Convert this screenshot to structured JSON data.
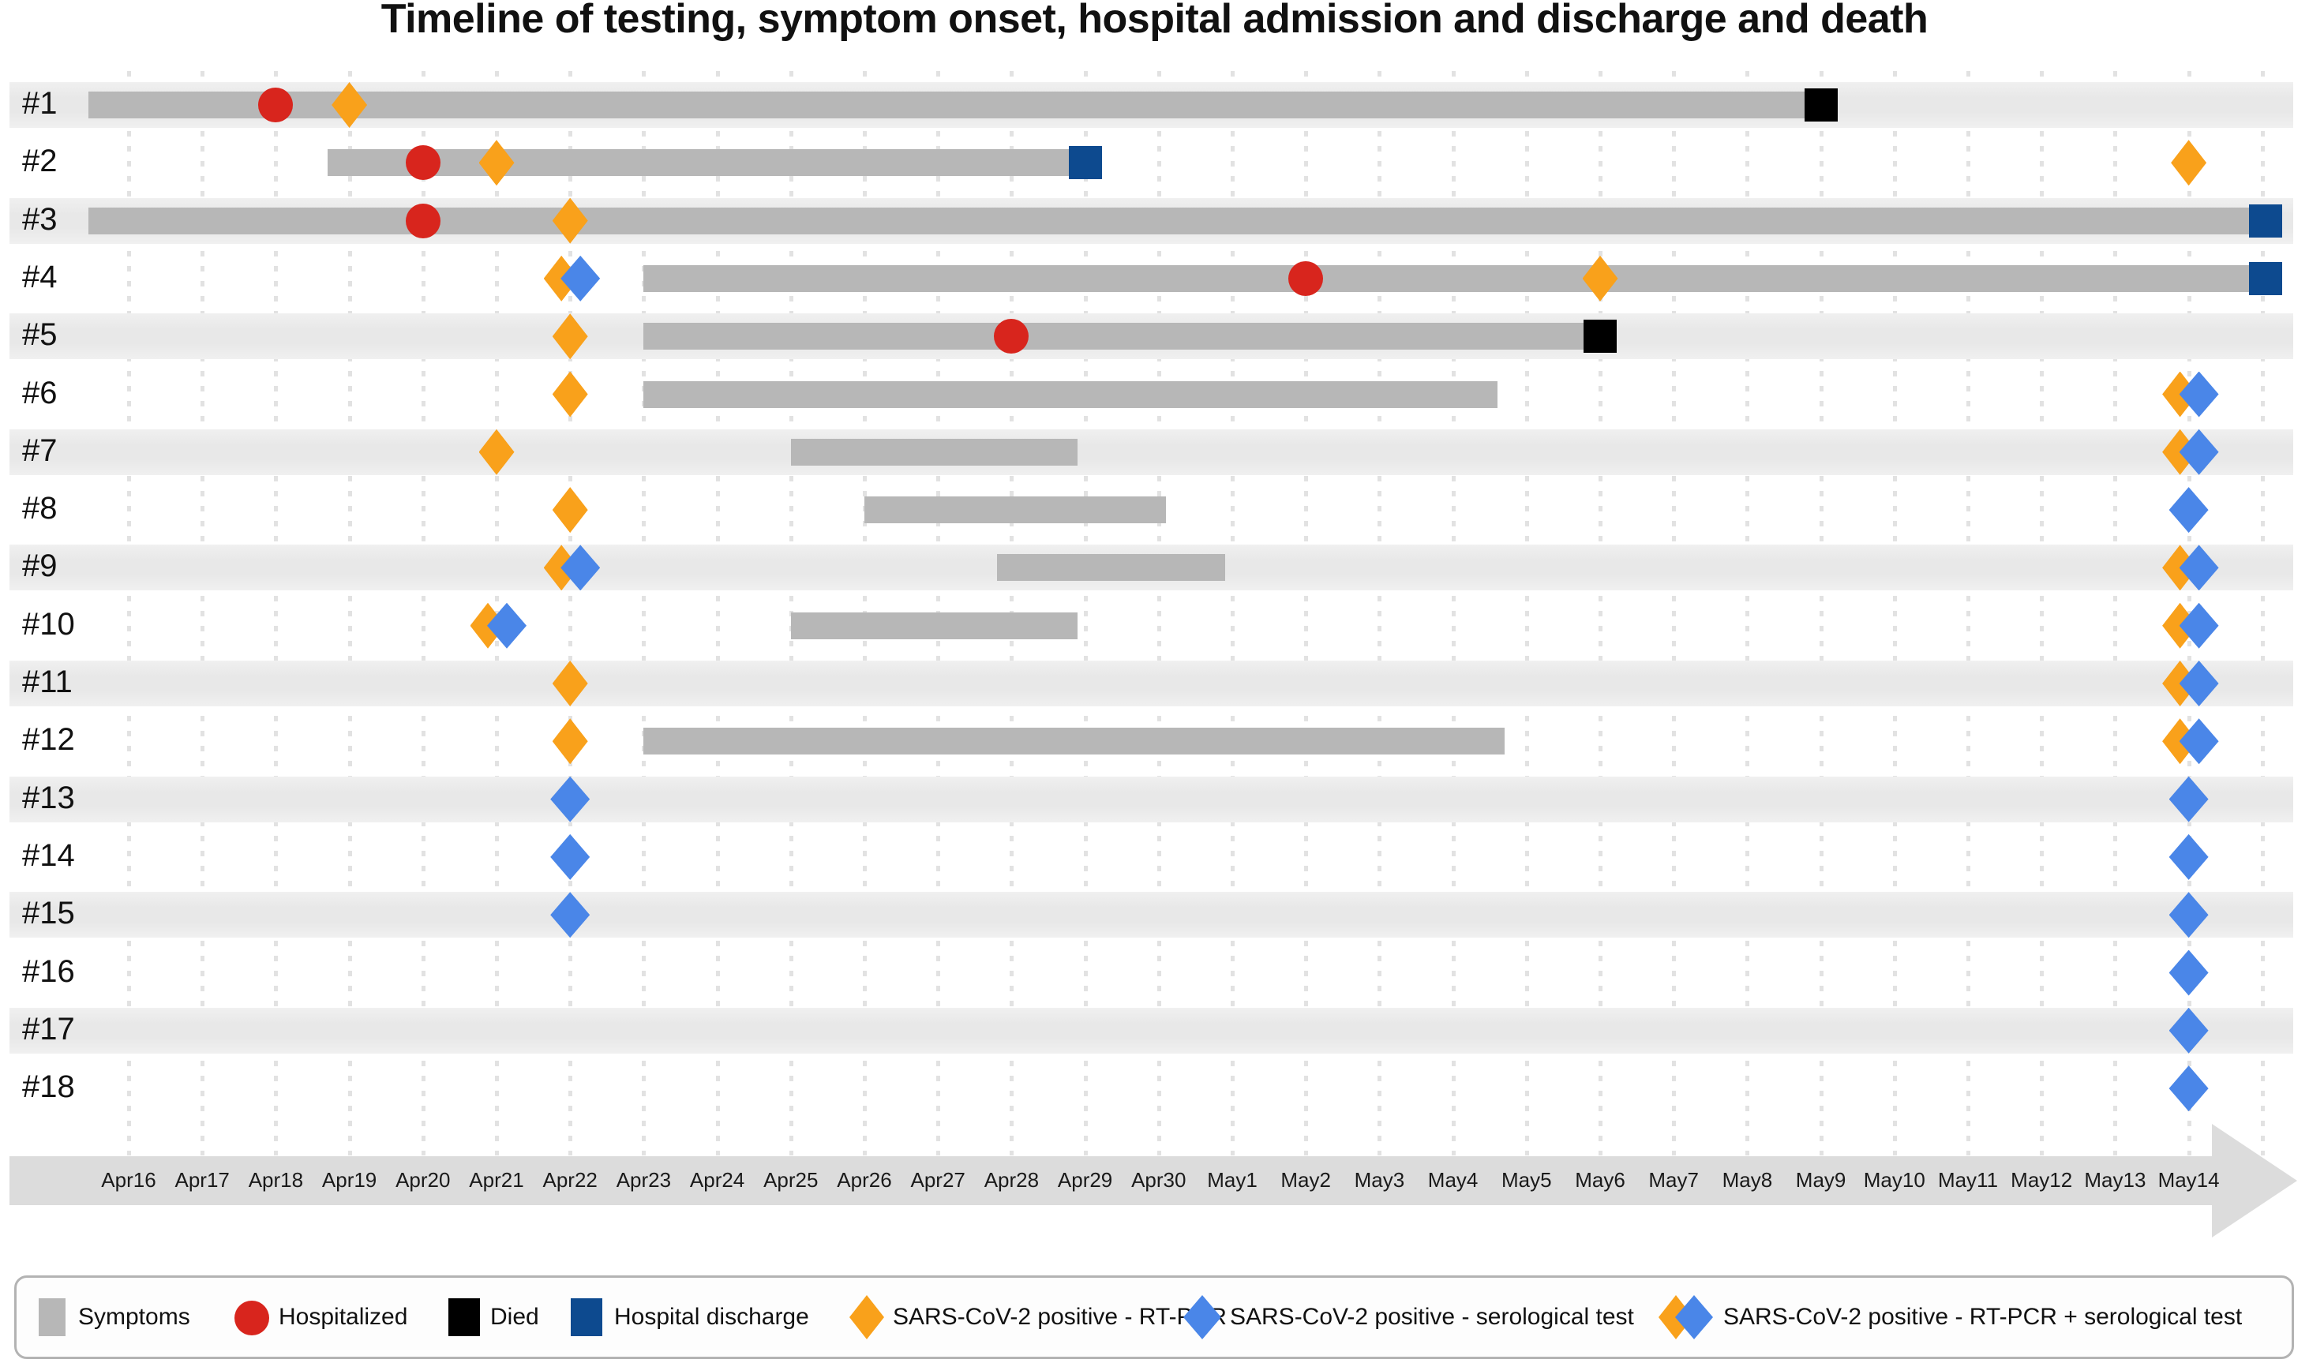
{
  "title": "Timeline of testing, symptom onset, hospital admission and discharge and death",
  "colors": {
    "symptom_bar": "#b7b7b7",
    "hospitalized_red": "#d8251d",
    "died_black": "#000000",
    "discharge_navy": "#0d4a8f",
    "rtpcr_orange": "#f9a11b",
    "serological_blue": "#4a86e8",
    "row_stripe": "#ebebeb",
    "axis_arrow": "#dcdcdc"
  },
  "legend": {
    "items": [
      {
        "type": "symptoms",
        "label": "Symptoms"
      },
      {
        "type": "hospitalized",
        "label": "Hospitalized"
      },
      {
        "type": "died",
        "label": "Died"
      },
      {
        "type": "discharge",
        "label": "Hospital discharge"
      },
      {
        "type": "positive_rtpcr",
        "label": "SARS-CoV-2 positive - RT-PCR"
      },
      {
        "type": "positive_sero",
        "label": "SARS-CoV-2 positive - serological test"
      },
      {
        "type": "positive_rtpcr_sero",
        "label": "SARS-CoV-2 positive - RT-PCR + serological test"
      }
    ]
  },
  "chart_data": {
    "type": "timeline",
    "day_index_note": "day 0 = Apr16, day 28 = May14, fractional days interpolate; day > 28 = beyond chart right edge",
    "dates": [
      "Apr16",
      "Apr17",
      "Apr18",
      "Apr19",
      "Apr20",
      "Apr21",
      "Apr22",
      "Apr23",
      "Apr24",
      "Apr25",
      "Apr26",
      "Apr27",
      "Apr28",
      "Apr29",
      "Apr30",
      "May1",
      "May2",
      "May3",
      "May4",
      "May5",
      "May6",
      "May7",
      "May8",
      "May9",
      "May10",
      "May11",
      "May12",
      "May13",
      "May14"
    ],
    "patients": [
      {
        "id": "#1",
        "symptom_bar": {
          "start": -0.55,
          "end": 23
        },
        "events": [
          {
            "type": "hospitalized",
            "day": 2,
            "date": "Apr18"
          },
          {
            "type": "positive_rtpcr",
            "day": 3,
            "date": "Apr19"
          },
          {
            "type": "died",
            "day": 23,
            "date": "May9"
          }
        ]
      },
      {
        "id": "#2",
        "symptom_bar": {
          "start": 2.7,
          "end": 13
        },
        "events": [
          {
            "type": "hospitalized",
            "day": 4,
            "date": "Apr20"
          },
          {
            "type": "positive_rtpcr",
            "day": 5,
            "date": "Apr21"
          },
          {
            "type": "discharge",
            "day": 13,
            "date": "Apr29"
          },
          {
            "type": "positive_rtpcr",
            "day": 28,
            "date": "May14"
          }
        ]
      },
      {
        "id": "#3",
        "symptom_bar": {
          "start": -0.55,
          "end": 29.2
        },
        "events": [
          {
            "type": "hospitalized",
            "day": 4,
            "date": "Apr20"
          },
          {
            "type": "positive_rtpcr",
            "day": 6,
            "date": "Apr22"
          },
          {
            "type": "discharge",
            "day": 29.05,
            "date": "after May14"
          }
        ]
      },
      {
        "id": "#4",
        "symptom_bar": {
          "start": 7,
          "end": 29.2
        },
        "events": [
          {
            "type": "positive_rtpcr_sero",
            "day": 6,
            "date": "Apr22"
          },
          {
            "type": "hospitalized",
            "day": 16,
            "date": "May2"
          },
          {
            "type": "positive_rtpcr",
            "day": 20,
            "date": "May6"
          },
          {
            "type": "discharge",
            "day": 29.05,
            "date": "after May14"
          }
        ]
      },
      {
        "id": "#5",
        "symptom_bar": {
          "start": 7,
          "end": 20
        },
        "events": [
          {
            "type": "positive_rtpcr",
            "day": 6,
            "date": "Apr22"
          },
          {
            "type": "hospitalized",
            "day": 12,
            "date": "Apr28"
          },
          {
            "type": "died",
            "day": 20,
            "date": "May6"
          }
        ]
      },
      {
        "id": "#6",
        "symptom_bar": {
          "start": 7,
          "end": 18.6
        },
        "events": [
          {
            "type": "positive_rtpcr",
            "day": 6,
            "date": "Apr22"
          },
          {
            "type": "positive_rtpcr_sero",
            "day": 28,
            "date": "May14"
          }
        ]
      },
      {
        "id": "#7",
        "symptom_bar": {
          "start": 9,
          "end": 12.9
        },
        "events": [
          {
            "type": "positive_rtpcr",
            "day": 5,
            "date": "Apr21"
          },
          {
            "type": "positive_rtpcr_sero",
            "day": 28,
            "date": "May14"
          }
        ]
      },
      {
        "id": "#8",
        "symptom_bar": {
          "start": 10,
          "end": 14.1
        },
        "events": [
          {
            "type": "positive_rtpcr",
            "day": 6,
            "date": "Apr22"
          },
          {
            "type": "positive_sero",
            "day": 28,
            "date": "May14"
          }
        ]
      },
      {
        "id": "#9",
        "symptom_bar": {
          "start": 11.8,
          "end": 14.9
        },
        "events": [
          {
            "type": "positive_rtpcr_sero",
            "day": 6,
            "date": "Apr22"
          },
          {
            "type": "positive_rtpcr_sero",
            "day": 28,
            "date": "May14"
          }
        ]
      },
      {
        "id": "#10",
        "symptom_bar": {
          "start": 9,
          "end": 12.9
        },
        "events": [
          {
            "type": "positive_rtpcr_sero",
            "day": 5,
            "date": "Apr21"
          },
          {
            "type": "positive_rtpcr_sero",
            "day": 28,
            "date": "May14"
          }
        ]
      },
      {
        "id": "#11",
        "symptom_bar": null,
        "events": [
          {
            "type": "positive_rtpcr",
            "day": 6,
            "date": "Apr22"
          },
          {
            "type": "positive_rtpcr_sero",
            "day": 28,
            "date": "May14"
          }
        ]
      },
      {
        "id": "#12",
        "symptom_bar": {
          "start": 7,
          "end": 18.7
        },
        "events": [
          {
            "type": "positive_rtpcr",
            "day": 6,
            "date": "Apr22"
          },
          {
            "type": "positive_rtpcr_sero",
            "day": 28,
            "date": "May14"
          }
        ]
      },
      {
        "id": "#13",
        "symptom_bar": null,
        "events": [
          {
            "type": "positive_sero",
            "day": 6,
            "date": "Apr22"
          },
          {
            "type": "positive_sero",
            "day": 28,
            "date": "May14"
          }
        ]
      },
      {
        "id": "#14",
        "symptom_bar": null,
        "events": [
          {
            "type": "positive_sero",
            "day": 6,
            "date": "Apr22"
          },
          {
            "type": "positive_sero",
            "day": 28,
            "date": "May14"
          }
        ]
      },
      {
        "id": "#15",
        "symptom_bar": null,
        "events": [
          {
            "type": "positive_sero",
            "day": 6,
            "date": "Apr22"
          },
          {
            "type": "positive_sero",
            "day": 28,
            "date": "May14"
          }
        ]
      },
      {
        "id": "#16",
        "symptom_bar": null,
        "events": [
          {
            "type": "positive_sero",
            "day": 28,
            "date": "May14"
          }
        ]
      },
      {
        "id": "#17",
        "symptom_bar": null,
        "events": [
          {
            "type": "positive_sero",
            "day": 28,
            "date": "May14"
          }
        ]
      },
      {
        "id": "#18",
        "symptom_bar": null,
        "events": [
          {
            "type": "positive_sero",
            "day": 28,
            "date": "May14"
          }
        ]
      }
    ]
  }
}
